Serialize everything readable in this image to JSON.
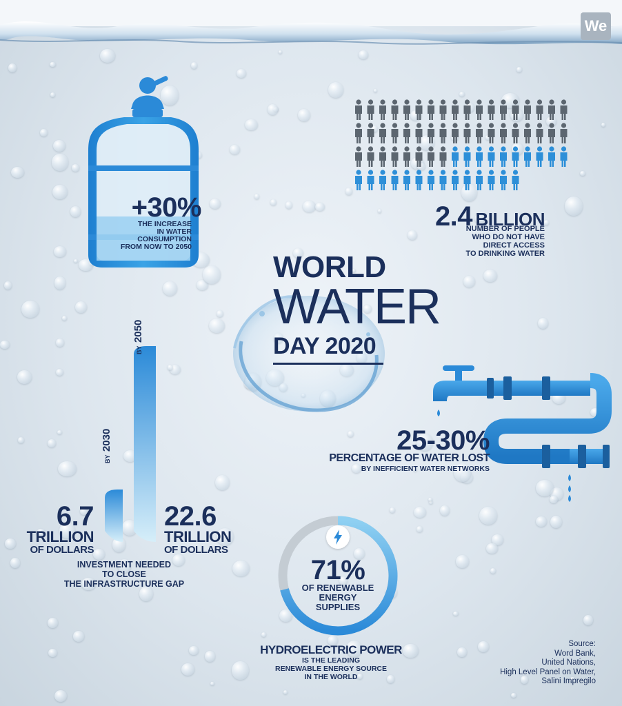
{
  "title": {
    "line1": "WORLD",
    "line2": "WATER",
    "line3": "DAY 2020"
  },
  "logo": {
    "text": "We"
  },
  "bottle": {
    "value": "+30%",
    "line1": "THE INCREASE",
    "line2": "IN WATER",
    "line3": "CONSUMPTION",
    "line4": "FROM NOW TO 2050"
  },
  "people": {
    "value": "2.4",
    "unit": "BILLION",
    "line1": "NUMBER OF PEOPLE",
    "line2": "WHO DO NOT HAVE",
    "line3": "DIRECT ACCESS",
    "line4": "TO DRINKING WATER",
    "total_icons": 68,
    "highlighted_icons": 24
  },
  "investment": {
    "left_value": "6.7",
    "left_unit": "TRILLION",
    "left_sub": "OF DOLLARS",
    "left_tag_by": "BY",
    "left_tag_year": "2030",
    "right_value": "22.6",
    "right_unit": "TRILLION",
    "right_sub": "OF DOLLARS",
    "right_tag_by": "BY",
    "right_tag_year": "2050",
    "line1": "INVESTMENT NEEDED",
    "line2": "TO CLOSE",
    "line3": "THE INFRASTRUCTURE GAP"
  },
  "water_loss": {
    "value": "25-30%",
    "line1": "PERCENTAGE OF WATER LOST",
    "line2": "BY INEFFICIENT WATER NETWORKS"
  },
  "renewable": {
    "value": "71%",
    "line1": "OF RENEWABLE",
    "line2": "ENERGY",
    "line3": "SUPPLIES",
    "fraction": 0.71,
    "heading": "HYDROELECTRIC POWER",
    "sub1": "IS THE LEADING",
    "sub2": "RENEWABLE ENERGY SOURCE",
    "sub3": "IN THE WORLD"
  },
  "source": {
    "line1": "Source:",
    "line2": "Word Bank,",
    "line3": "United Nations,",
    "line4": "High Level Panel on Water,",
    "line5": "Salini Impregilo"
  },
  "colors": {
    "navy": "#1b2f5b",
    "blue": "#2d8fd8",
    "light_blue": "#8fd0f2",
    "gray_person": "#5c6670"
  }
}
